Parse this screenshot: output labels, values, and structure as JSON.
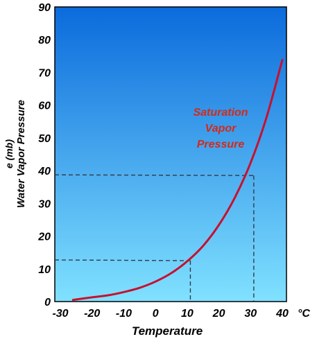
{
  "chart_data": {
    "type": "line",
    "xlabel": "Temperature",
    "x_unit": "°C",
    "ylabel": "Water Vapor Pressure",
    "ylabel_unit": "e (mb)",
    "xlim": [
      -30,
      40
    ],
    "ylim": [
      0,
      90
    ],
    "x_ticks": [
      -30,
      -20,
      -10,
      0,
      10,
      20,
      30,
      40
    ],
    "y_ticks": [
      0,
      10,
      20,
      30,
      40,
      50,
      60,
      70,
      80,
      90
    ],
    "grid": false,
    "series": [
      {
        "x": [
          -26,
          -20,
          -15,
          -10,
          -5,
          0,
          5,
          10,
          15,
          20,
          25,
          30,
          35,
          40
        ],
        "values": [
          0.5,
          1.3,
          1.9,
          2.9,
          4.2,
          6.1,
          8.7,
          12.3,
          17.0,
          23.4,
          31.7,
          42.4,
          56.2,
          73.8
        ],
        "color": "#c8102e"
      }
    ],
    "annotation_lines": [
      "Saturation",
      "Vapor",
      "Pressure"
    ],
    "annotation_color": "#d42a1a",
    "reference_points": [
      {
        "x": 11,
        "y": 12.5
      },
      {
        "x": 31,
        "y": 38.5
      }
    ],
    "background_gradient": {
      "top": "#0b6bdc",
      "bottom": "#80e1ff"
    }
  }
}
